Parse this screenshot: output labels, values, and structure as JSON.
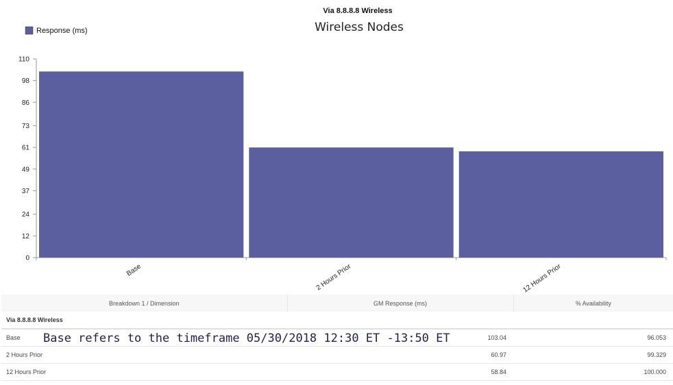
{
  "header": {
    "super_title": "Via 8.8.8.8 Wireless",
    "title": "Wireless Nodes"
  },
  "legend": {
    "label": "Response (ms)",
    "placement": "top-left"
  },
  "chart_data": {
    "type": "bar",
    "title": "Wireless Nodes",
    "categories": [
      "Base",
      "2 Hours Prior",
      "12 Hours Prior"
    ],
    "series": [
      {
        "name": "Response (ms)",
        "values": [
          103.04,
          60.97,
          58.84
        ],
        "color": "#5b5e9f"
      }
    ],
    "yticks": [
      0,
      12,
      24,
      37,
      49,
      61,
      73,
      86,
      98,
      110
    ],
    "ylim": [
      0,
      110
    ],
    "grid": false
  },
  "table": {
    "headers": [
      "Breakdown 1 / Dimension",
      "GM Response (ms)",
      "% Availability"
    ],
    "group_label": "Via 8.8.8.8 Wireless",
    "rows": [
      {
        "dimension": "Base",
        "response": "103.04",
        "availability": "96.053"
      },
      {
        "dimension": "2 Hours Prior",
        "response": "60.97",
        "availability": "99.329"
      },
      {
        "dimension": "12 Hours Prior",
        "response": "58.84",
        "availability": "100.000"
      }
    ]
  },
  "note": "Base refers to the timeframe 05/30/2018 12:30 ET -13:50 ET",
  "colors": {
    "bar": "#5b5e9f",
    "axis": "#999999"
  }
}
